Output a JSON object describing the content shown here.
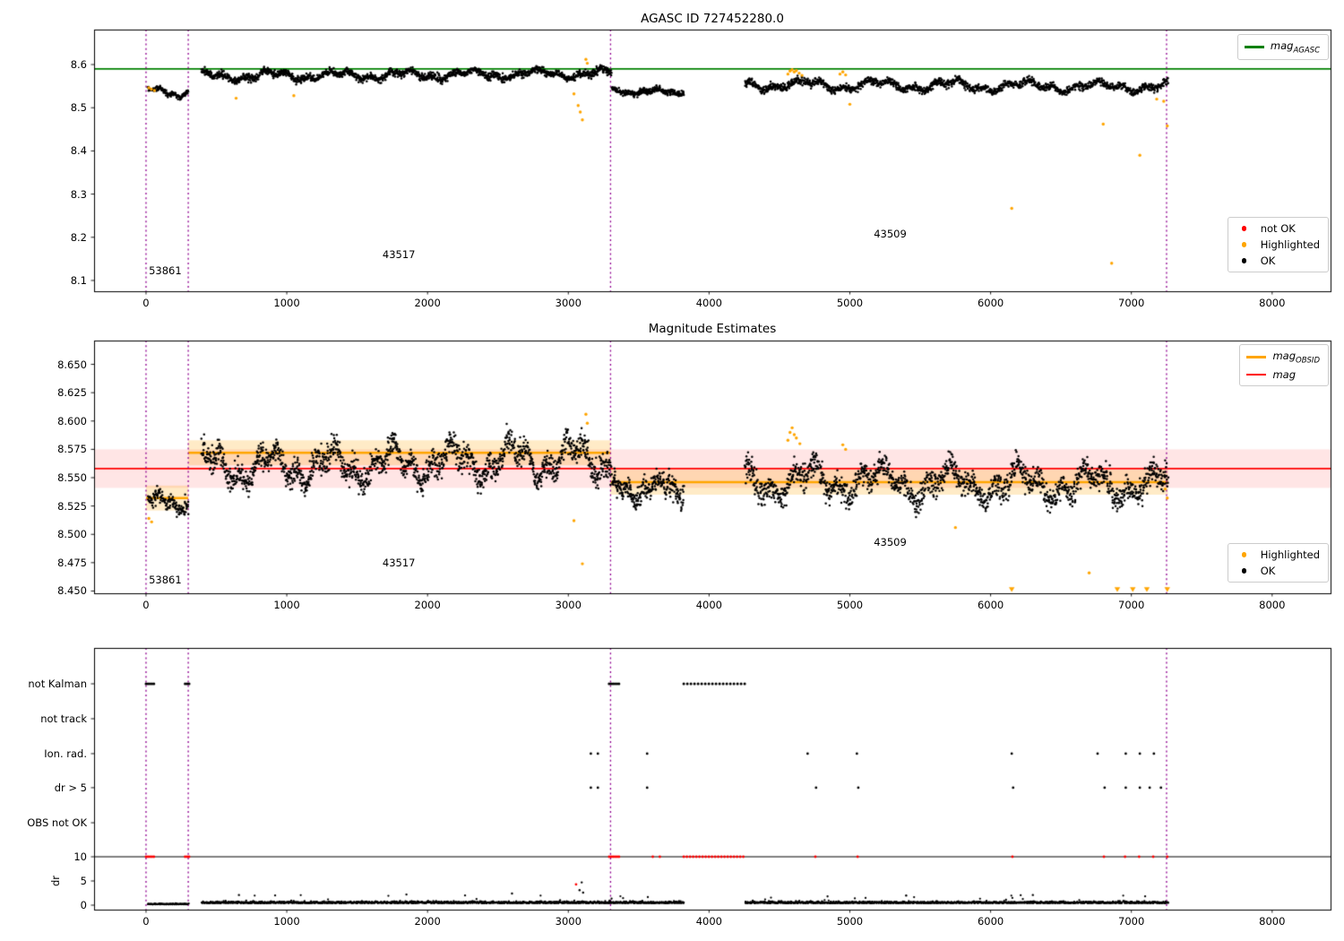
{
  "colors": {
    "ok": "#000000",
    "highlight": "#ffa500",
    "not_ok": "#ff0000",
    "agasc_line": "#008000",
    "obsid_line": "#ffa500",
    "mag_line": "#ff0000",
    "vline": "#900090"
  },
  "chart_data": [
    {
      "id": "agasc",
      "type": "scatter",
      "title": "AGASC ID 727452280.0",
      "xlabel": "",
      "ylabel": "",
      "xlim": [
        -369,
        8415
      ],
      "ylim": [
        8.075,
        8.681
      ],
      "xticks": [
        0,
        1000,
        2000,
        3000,
        4000,
        5000,
        6000,
        7000,
        8000
      ],
      "xtick_labels": [
        "0",
        "1000",
        "2000",
        "3000",
        "4000",
        "5000",
        "6000",
        "7000",
        "8000"
      ],
      "yticks": [
        8.6,
        8.5,
        8.4,
        8.3,
        8.2,
        8.1
      ],
      "ytick_labels": [
        "8.6",
        "8.5",
        "8.4",
        "8.3",
        "8.2",
        "8.1"
      ],
      "agasc_mag": 8.59,
      "vlines": [
        0,
        300,
        3300,
        7250
      ],
      "segments": [
        {
          "x0": 15,
          "x1": 300,
          "n": 130,
          "mean": 8.536,
          "wave": 0.006,
          "period": 300,
          "noise": 0.005,
          "trend": -0.008
        },
        {
          "x0": 395,
          "x1": 3305,
          "n": 1500,
          "mean": 8.576,
          "wave": 0.008,
          "period": 470,
          "noise": 0.0075,
          "trend": 0.006
        },
        {
          "x0": 3310,
          "x1": 3820,
          "n": 270,
          "mean": 8.537,
          "wave": 0.004,
          "period": 330,
          "noise": 0.006,
          "trend": 0
        },
        {
          "x0": 4255,
          "x1": 7260,
          "n": 1450,
          "mean": 8.551,
          "wave": 0.009,
          "period": 520,
          "noise": 0.0075,
          "trend": -0.005
        }
      ],
      "highlighted": [
        [
          20,
          8.546
        ],
        [
          38,
          8.543
        ],
        [
          60,
          8.54
        ],
        [
          640,
          8.522
        ],
        [
          1050,
          8.528
        ],
        [
          3040,
          8.532
        ],
        [
          3070,
          8.505
        ],
        [
          3085,
          8.49
        ],
        [
          3100,
          8.472
        ],
        [
          3125,
          8.612
        ],
        [
          3135,
          8.603
        ],
        [
          4560,
          8.578
        ],
        [
          4575,
          8.585
        ],
        [
          4590,
          8.588
        ],
        [
          4605,
          8.583
        ],
        [
          4620,
          8.586
        ],
        [
          4640,
          8.58
        ],
        [
          4660,
          8.575
        ],
        [
          4930,
          8.578
        ],
        [
          4950,
          8.583
        ],
        [
          4970,
          8.576
        ],
        [
          5000,
          8.508
        ],
        [
          6150,
          8.267
        ],
        [
          6800,
          8.462
        ],
        [
          6860,
          8.14
        ],
        [
          7060,
          8.39
        ],
        [
          7180,
          8.52
        ],
        [
          7230,
          8.515
        ],
        [
          7255,
          8.458
        ]
      ],
      "annotations": [
        {
          "text": "53861",
          "x": 20,
          "y": 8.112
        },
        {
          "text": "43517",
          "x": 1680,
          "y": 8.15
        },
        {
          "text": "43509",
          "x": 5170,
          "y": 8.198
        }
      ],
      "legends": [
        {
          "id": "mag_agasc",
          "items": [
            {
              "marker": "line",
              "color": "#008000",
              "label": "mag",
              "sub": "AGASC",
              "math": true
            }
          ]
        },
        {
          "id": "status_top",
          "items": [
            {
              "marker": "dot",
              "color": "#ff0000",
              "label": "not OK"
            },
            {
              "marker": "dot",
              "color": "#ffa500",
              "label": "Highlighted"
            },
            {
              "marker": "dot",
              "color": "#000000",
              "label": "OK"
            }
          ]
        }
      ]
    },
    {
      "id": "magnitude_estimates",
      "type": "scatter",
      "title": "Magnitude Estimates",
      "xlabel": "",
      "ylabel": "",
      "xlim": [
        -369,
        8415
      ],
      "ylim": [
        8.448,
        8.671
      ],
      "xticks": [
        0,
        1000,
        2000,
        3000,
        4000,
        5000,
        6000,
        7000,
        8000
      ],
      "xtick_labels": [
        "0",
        "1000",
        "2000",
        "3000",
        "4000",
        "5000",
        "6000",
        "7000",
        "8000"
      ],
      "yticks": [
        8.65,
        8.625,
        8.6,
        8.575,
        8.55,
        8.525,
        8.5,
        8.475,
        8.45
      ],
      "ytick_labels": [
        "8.650",
        "8.625",
        "8.600",
        "8.575",
        "8.550",
        "8.525",
        "8.500",
        "8.475",
        "8.450"
      ],
      "mag_line": {
        "y": 8.558,
        "band": 0.017
      },
      "obsid_band": 0.011,
      "obsid_segments": [
        {
          "x0": 0,
          "x1": 300,
          "y": 8.532
        },
        {
          "x0": 300,
          "x1": 3300,
          "y": 8.572
        },
        {
          "x0": 3300,
          "x1": 7260,
          "y": 8.546
        }
      ],
      "vlines": [
        0,
        300,
        3300,
        7250
      ],
      "segments": [
        {
          "x0": 15,
          "x1": 300,
          "n": 130,
          "mean": 8.528,
          "wave": 0.004,
          "period": 300,
          "noise": 0.006,
          "trend": -0.006
        },
        {
          "x0": 395,
          "x1": 3305,
          "n": 1500,
          "mean": 8.563,
          "wave": 0.012,
          "period": 430,
          "noise": 0.01,
          "trend": 0.01
        },
        {
          "x0": 3310,
          "x1": 3820,
          "n": 270,
          "mean": 8.54,
          "wave": 0.006,
          "period": 330,
          "noise": 0.009,
          "trend": 0
        },
        {
          "x0": 4255,
          "x1": 7260,
          "n": 1450,
          "mean": 8.545,
          "wave": 0.011,
          "period": 500,
          "noise": 0.01,
          "trend": -0.004
        }
      ],
      "highlighted": [
        [
          20,
          8.514
        ],
        [
          40,
          8.511
        ],
        [
          3040,
          8.512
        ],
        [
          3100,
          8.474
        ],
        [
          3125,
          8.606
        ],
        [
          3135,
          8.598
        ],
        [
          4560,
          8.583
        ],
        [
          4575,
          8.59
        ],
        [
          4590,
          8.594
        ],
        [
          4605,
          8.588
        ],
        [
          4620,
          8.585
        ],
        [
          4645,
          8.58
        ],
        [
          4950,
          8.579
        ],
        [
          4970,
          8.575
        ],
        [
          5750,
          8.506
        ],
        [
          6700,
          8.466
        ],
        [
          7240,
          8.54
        ],
        [
          7255,
          8.532
        ]
      ],
      "triangle_clip_x": [
        6150,
        6900,
        7010,
        7110,
        7255
      ],
      "annotations": [
        {
          "text": "53861",
          "x": 20,
          "y": 8.456
        },
        {
          "text": "43517",
          "x": 1680,
          "y": 8.471
        },
        {
          "text": "43509",
          "x": 5170,
          "y": 8.489
        }
      ],
      "legends": [
        {
          "id": "mag_mid",
          "items": [
            {
              "marker": "line",
              "color": "#ffa500",
              "label": "mag",
              "sub": "OBSID",
              "thick": true,
              "math": true
            },
            {
              "marker": "line",
              "color": "#ff0000",
              "label": "mag",
              "math": true
            }
          ]
        },
        {
          "id": "status_mid",
          "items": [
            {
              "marker": "dot",
              "color": "#ffa500",
              "label": "Highlighted"
            },
            {
              "marker": "dot",
              "color": "#000000",
              "label": "OK"
            }
          ]
        }
      ]
    },
    {
      "id": "flags",
      "type": "scatter",
      "title": "",
      "xlabel": "",
      "ylabel": "dr",
      "xlim": [
        -369,
        8415
      ],
      "xticks": [
        0,
        1000,
        2000,
        3000,
        4000,
        5000,
        6000,
        7000,
        8000
      ],
      "xtick_labels": [
        "0",
        "1000",
        "2000",
        "3000",
        "4000",
        "5000",
        "6000",
        "7000",
        "8000"
      ],
      "row_labels": [
        "not Kalman",
        "not track",
        "Ion. rad.",
        "dr > 5",
        "OBS not OK"
      ],
      "dr_ticks": [
        10,
        5,
        0
      ],
      "dr_tick_labels": [
        "10",
        "5",
        "0"
      ],
      "dr_hline": 10,
      "vlines": [
        0,
        300,
        3300,
        7250
      ],
      "not_kalman_runs": [
        [
          0,
          62
        ],
        [
          278,
          312
        ],
        [
          3290,
          3362
        ],
        [
          3820,
          4255
        ]
      ],
      "ion_rad_x": [
        3160,
        3210,
        3560,
        4700,
        5050,
        6150,
        6760,
        6960,
        7060,
        7160
      ],
      "dr5_x": [
        3160,
        3210,
        3560,
        4760,
        5060,
        6160,
        6810,
        6960,
        7060,
        7130,
        7210
      ],
      "dr10_red_runs": [
        [
          0,
          62
        ],
        [
          278,
          312
        ],
        [
          3290,
          3362
        ],
        [
          3820,
          4255
        ]
      ],
      "dr10_red_singles": [
        3600,
        3650,
        4755,
        5055,
        6155,
        6805,
        6955,
        7055,
        7155,
        7255
      ],
      "red_points": [
        [
          3055,
          4.3
        ]
      ],
      "dr_segments": [
        {
          "x0": 15,
          "x1": 300,
          "n": 110,
          "base": 0.15,
          "spread": 0.25
        },
        {
          "x0": 395,
          "x1": 3820,
          "n": 1500,
          "base": 0.4,
          "spread": 0.55
        },
        {
          "x0": 4255,
          "x1": 7260,
          "n": 1350,
          "base": 0.4,
          "spread": 0.55
        }
      ],
      "dr_black_extra": [
        [
          660,
          2.1
        ],
        [
          1850,
          2.2
        ],
        [
          2600,
          2.4
        ],
        [
          3080,
          3.1
        ],
        [
          3095,
          4.7
        ],
        [
          3105,
          2.6
        ],
        [
          5400,
          2.0
        ],
        [
          6300,
          2.1
        ]
      ]
    }
  ]
}
